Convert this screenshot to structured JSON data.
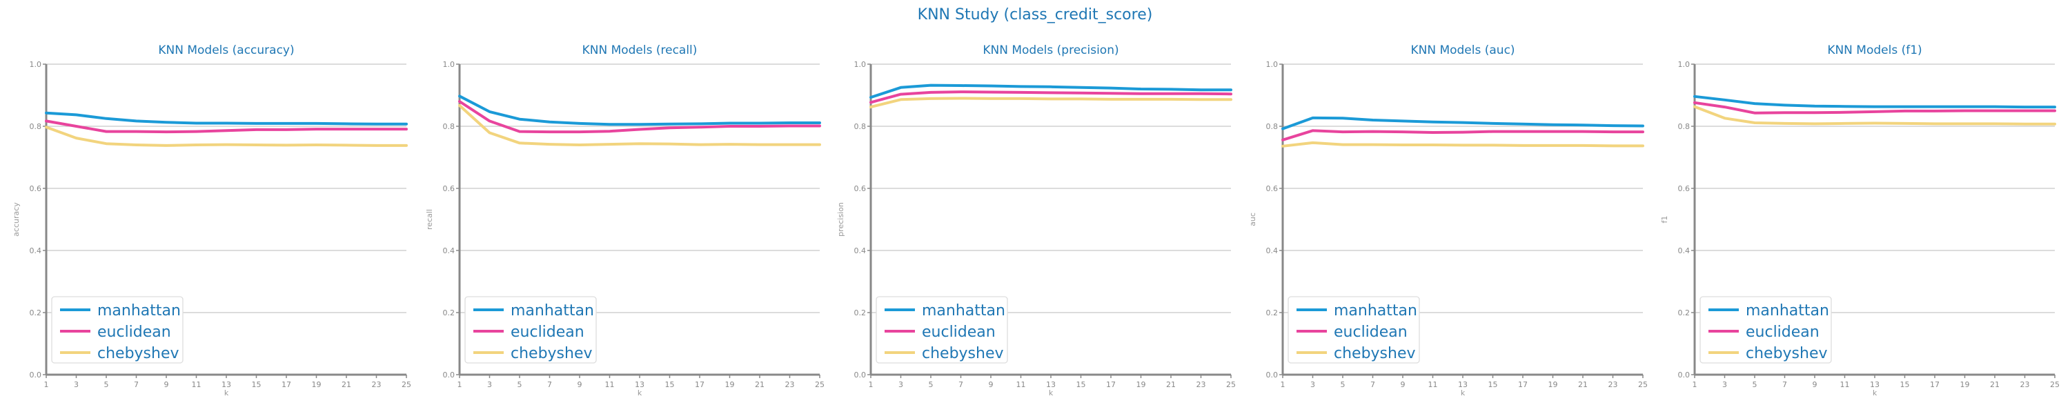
{
  "figure_title": "KNN Study (class_credit_score)",
  "colors": {
    "title": "#1f77b4",
    "manhattan": "#1b9ad7",
    "euclidean": "#e8449d",
    "chebyshev": "#f2d47e",
    "axis": "#888888",
    "grid": "#c8c8c8"
  },
  "chart_data": [
    {
      "type": "line",
      "title": "KNN Models (accuracy)",
      "xlabel": "k",
      "ylabel": "accuracy",
      "x": [
        1,
        3,
        5,
        7,
        9,
        11,
        13,
        15,
        17,
        19,
        21,
        23,
        25
      ],
      "ylim": [
        0.0,
        1.0
      ],
      "yticks": [
        "0.0",
        "0.2",
        "0.4",
        "0.6",
        "0.8",
        "1.0"
      ],
      "grid": true,
      "legend_position": "lower-left",
      "series": [
        {
          "name": "manhattan",
          "values": [
            0.843,
            0.837,
            0.825,
            0.817,
            0.813,
            0.81,
            0.81,
            0.809,
            0.809,
            0.809,
            0.808,
            0.807,
            0.807
          ]
        },
        {
          "name": "euclidean",
          "values": [
            0.817,
            0.8,
            0.783,
            0.783,
            0.782,
            0.783,
            0.786,
            0.789,
            0.789,
            0.791,
            0.791,
            0.791,
            0.791
          ]
        },
        {
          "name": "chebyshev",
          "values": [
            0.797,
            0.762,
            0.744,
            0.74,
            0.738,
            0.74,
            0.741,
            0.74,
            0.739,
            0.74,
            0.739,
            0.738,
            0.738
          ]
        }
      ]
    },
    {
      "type": "line",
      "title": "KNN Models (recall)",
      "xlabel": "k",
      "ylabel": "recall",
      "x": [
        1,
        3,
        5,
        7,
        9,
        11,
        13,
        15,
        17,
        19,
        21,
        23,
        25
      ],
      "ylim": [
        0.0,
        1.0
      ],
      "yticks": [
        "0.0",
        "0.2",
        "0.4",
        "0.6",
        "0.8",
        "1.0"
      ],
      "grid": true,
      "legend_position": "lower-left",
      "series": [
        {
          "name": "manhattan",
          "values": [
            0.897,
            0.847,
            0.823,
            0.814,
            0.809,
            0.806,
            0.806,
            0.807,
            0.808,
            0.81,
            0.81,
            0.811,
            0.811
          ]
        },
        {
          "name": "euclidean",
          "values": [
            0.88,
            0.817,
            0.783,
            0.782,
            0.782,
            0.784,
            0.79,
            0.795,
            0.797,
            0.8,
            0.8,
            0.801,
            0.801
          ]
        },
        {
          "name": "chebyshev",
          "values": [
            0.867,
            0.779,
            0.746,
            0.742,
            0.74,
            0.742,
            0.744,
            0.743,
            0.741,
            0.742,
            0.741,
            0.741,
            0.741
          ]
        }
      ]
    },
    {
      "type": "line",
      "title": "KNN Models (precision)",
      "xlabel": "k",
      "ylabel": "precision",
      "x": [
        1,
        3,
        5,
        7,
        9,
        11,
        13,
        15,
        17,
        19,
        21,
        23,
        25
      ],
      "ylim": [
        0.0,
        1.0
      ],
      "yticks": [
        "0.0",
        "0.2",
        "0.4",
        "0.6",
        "0.8",
        "1.0"
      ],
      "grid": true,
      "legend_position": "lower-left",
      "series": [
        {
          "name": "manhattan",
          "values": [
            0.893,
            0.925,
            0.932,
            0.931,
            0.93,
            0.928,
            0.927,
            0.925,
            0.923,
            0.92,
            0.919,
            0.917,
            0.917
          ]
        },
        {
          "name": "euclidean",
          "values": [
            0.877,
            0.903,
            0.909,
            0.911,
            0.91,
            0.909,
            0.908,
            0.907,
            0.906,
            0.905,
            0.905,
            0.905,
            0.904
          ]
        },
        {
          "name": "chebyshev",
          "values": [
            0.862,
            0.886,
            0.889,
            0.89,
            0.889,
            0.889,
            0.888,
            0.888,
            0.887,
            0.887,
            0.887,
            0.886,
            0.886
          ]
        }
      ]
    },
    {
      "type": "line",
      "title": "KNN Models (auc)",
      "xlabel": "k",
      "ylabel": "auc",
      "x": [
        1,
        3,
        5,
        7,
        9,
        11,
        13,
        15,
        17,
        19,
        21,
        23,
        25
      ],
      "ylim": [
        0.0,
        1.0
      ],
      "yticks": [
        "0.0",
        "0.2",
        "0.4",
        "0.6",
        "0.8",
        "1.0"
      ],
      "grid": true,
      "legend_position": "lower-left",
      "series": [
        {
          "name": "manhattan",
          "values": [
            0.792,
            0.827,
            0.826,
            0.82,
            0.817,
            0.814,
            0.812,
            0.809,
            0.807,
            0.805,
            0.804,
            0.802,
            0.801
          ]
        },
        {
          "name": "euclidean",
          "values": [
            0.756,
            0.786,
            0.782,
            0.783,
            0.782,
            0.78,
            0.781,
            0.783,
            0.783,
            0.783,
            0.783,
            0.782,
            0.782
          ]
        },
        {
          "name": "chebyshev",
          "values": [
            0.736,
            0.747,
            0.741,
            0.741,
            0.74,
            0.74,
            0.739,
            0.739,
            0.738,
            0.738,
            0.738,
            0.737,
            0.737
          ]
        }
      ]
    },
    {
      "type": "line",
      "title": "KNN Models (f1)",
      "xlabel": "k",
      "ylabel": "f1",
      "x": [
        1,
        3,
        5,
        7,
        9,
        11,
        13,
        15,
        17,
        19,
        21,
        23,
        25
      ],
      "ylim": [
        0.0,
        1.0
      ],
      "yticks": [
        "0.0",
        "0.2",
        "0.4",
        "0.6",
        "0.8",
        "1.0"
      ],
      "grid": true,
      "legend_position": "lower-left",
      "series": [
        {
          "name": "manhattan",
          "values": [
            0.896,
            0.885,
            0.873,
            0.868,
            0.865,
            0.864,
            0.863,
            0.863,
            0.863,
            0.863,
            0.863,
            0.862,
            0.862
          ]
        },
        {
          "name": "euclidean",
          "values": [
            0.876,
            0.862,
            0.843,
            0.844,
            0.844,
            0.845,
            0.847,
            0.849,
            0.849,
            0.85,
            0.85,
            0.85,
            0.85
          ]
        },
        {
          "name": "chebyshev",
          "values": [
            0.863,
            0.826,
            0.811,
            0.809,
            0.808,
            0.809,
            0.81,
            0.809,
            0.808,
            0.808,
            0.808,
            0.807,
            0.807
          ]
        }
      ]
    }
  ]
}
